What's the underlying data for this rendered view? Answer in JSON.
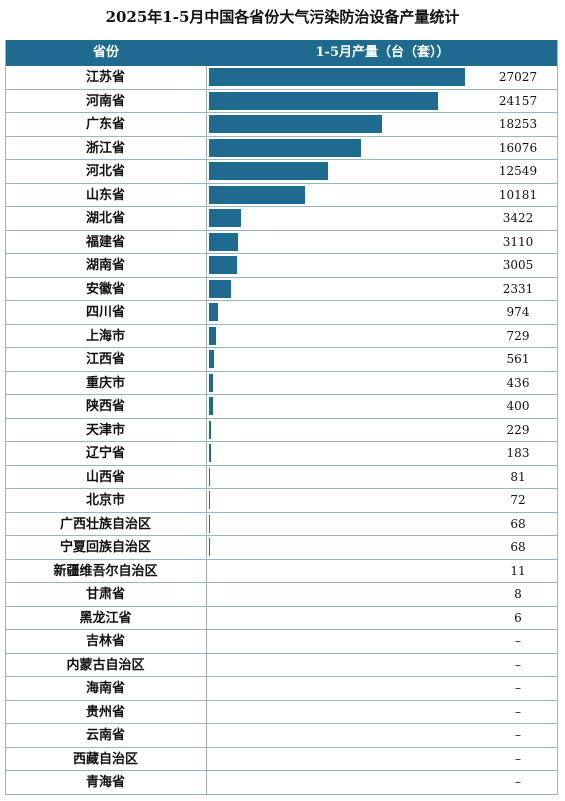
{
  "title": "2025年1-5月中国各省份大气污染防治设备产量统计",
  "chart_data": {
    "type": "table",
    "header": {
      "province": "省份",
      "output": "1-5月产量（台（套））"
    },
    "colors": {
      "header_bg": "#1f6b8f",
      "bar": "#1f6b8f"
    },
    "rows": [
      {
        "province": "江苏省",
        "value": 27027,
        "label": "27027"
      },
      {
        "province": "河南省",
        "value": 24157,
        "label": "24157"
      },
      {
        "province": "广东省",
        "value": 18253,
        "label": "18253"
      },
      {
        "province": "浙江省",
        "value": 16076,
        "label": "16076"
      },
      {
        "province": "河北省",
        "value": 12549,
        "label": "12549"
      },
      {
        "province": "山东省",
        "value": 10181,
        "label": "10181"
      },
      {
        "province": "湖北省",
        "value": 3422,
        "label": "3422"
      },
      {
        "province": "福建省",
        "value": 3110,
        "label": "3110"
      },
      {
        "province": "湖南省",
        "value": 3005,
        "label": "3005"
      },
      {
        "province": "安徽省",
        "value": 2331,
        "label": "2331"
      },
      {
        "province": "四川省",
        "value": 974,
        "label": "974"
      },
      {
        "province": "上海市",
        "value": 729,
        "label": "729"
      },
      {
        "province": "江西省",
        "value": 561,
        "label": "561"
      },
      {
        "province": "重庆市",
        "value": 436,
        "label": "436"
      },
      {
        "province": "陕西省",
        "value": 400,
        "label": "400"
      },
      {
        "province": "天津市",
        "value": 229,
        "label": "229"
      },
      {
        "province": "辽宁省",
        "value": 183,
        "label": "183"
      },
      {
        "province": "山西省",
        "value": 81,
        "label": "81"
      },
      {
        "province": "北京市",
        "value": 72,
        "label": "72"
      },
      {
        "province": "广西壮族自治区",
        "value": 68,
        "label": "68"
      },
      {
        "province": "宁夏回族自治区",
        "value": 68,
        "label": "68"
      },
      {
        "province": "新疆维吾尔自治区",
        "value": 11,
        "label": "11"
      },
      {
        "province": "甘肃省",
        "value": 8,
        "label": "8"
      },
      {
        "province": "黑龙江省",
        "value": 6,
        "label": "6"
      },
      {
        "province": "吉林省",
        "value": null,
        "label": "–"
      },
      {
        "province": "内蒙古自治区",
        "value": null,
        "label": "–"
      },
      {
        "province": "海南省",
        "value": null,
        "label": "–"
      },
      {
        "province": "贵州省",
        "value": null,
        "label": "–"
      },
      {
        "province": "云南省",
        "value": null,
        "label": "–"
      },
      {
        "province": "西藏自治区",
        "value": null,
        "label": "–"
      },
      {
        "province": "青海省",
        "value": null,
        "label": "–"
      }
    ]
  }
}
